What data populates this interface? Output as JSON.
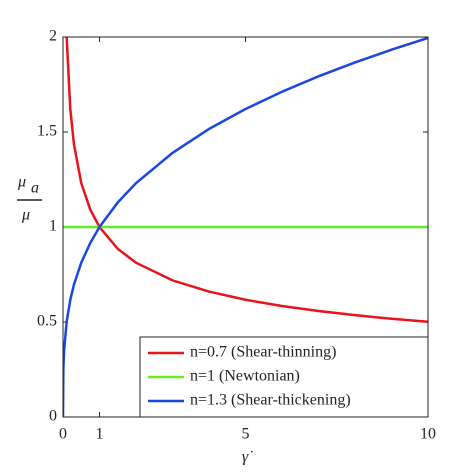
{
  "chart_data": {
    "type": "line",
    "x": [
      0,
      0.01,
      0.03,
      0.1,
      0.2,
      0.3,
      0.5,
      0.75,
      1,
      1.5,
      2,
      3,
      4,
      5,
      6,
      7,
      8,
      9,
      10
    ],
    "series": [
      {
        "name": "n=0.7 (Shear-thinning)",
        "color": "#e8141b",
        "values": [
          null,
          null,
          null,
          2.0,
          1.62,
          1.435,
          1.231,
          1.09,
          1,
          0.885,
          0.812,
          0.719,
          0.66,
          0.617,
          0.584,
          0.558,
          0.536,
          0.517,
          0.501
        ]
      },
      {
        "name": "n=1 (Newtonian)",
        "color": "#66ee22",
        "values": [
          1,
          1,
          1,
          1,
          1,
          1,
          1,
          1,
          1,
          1,
          1,
          1,
          1,
          1,
          1,
          1,
          1,
          1,
          1
        ]
      },
      {
        "name": "n=1.3 (Shear-thickening)",
        "color": "#1a47e0",
        "values": [
          0,
          0.251,
          0.349,
          0.501,
          0.617,
          0.697,
          0.812,
          0.917,
          1,
          1.129,
          1.231,
          1.39,
          1.516,
          1.621,
          1.712,
          1.793,
          1.866,
          1.933,
          1.995
        ]
      }
    ],
    "xlim": [
      0,
      10
    ],
    "xticks": [
      0,
      1,
      5,
      10
    ],
    "ylim": [
      0,
      2
    ],
    "yticks": [
      0,
      0.5,
      1,
      1.5,
      2
    ],
    "xlabel": "γ̇",
    "ylabel_numerator": "μ",
    "ylabel_subscript": "a",
    "ylabel_denominator": "μ",
    "legend": "lower right"
  }
}
